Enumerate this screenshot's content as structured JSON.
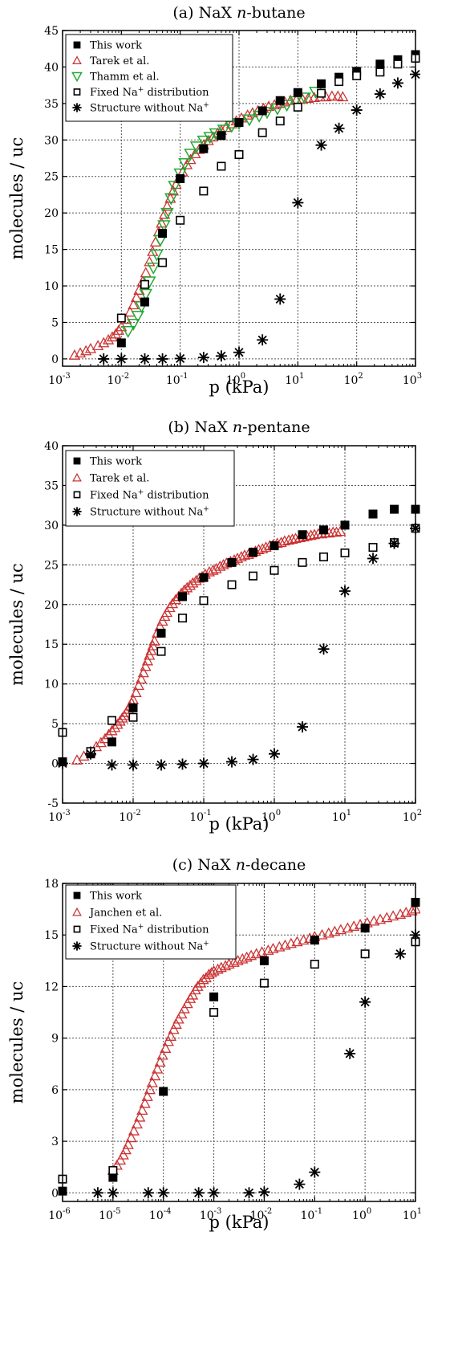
{
  "chart_data": [
    {
      "type": "scatter",
      "title": "(a)  NaX",
      "title_italic": "n",
      "title_rest": "-butane",
      "xlabel": "p (kPa)",
      "ylabel": "molecules / uc",
      "xscale": "log",
      "xlim": [
        0.001,
        1000
      ],
      "ylim": [
        -1,
        45
      ],
      "yticks": [
        0,
        5,
        10,
        15,
        20,
        25,
        30,
        35,
        40,
        45
      ],
      "xtick_exponents": [
        -3,
        -2,
        -1,
        0,
        1,
        2,
        3
      ],
      "xtick_base": "10",
      "grid": true,
      "legend_position": "top-left",
      "series": [
        {
          "name": "This work",
          "marker": "filled-square",
          "color": "#000000",
          "x": [
            0.01,
            0.025,
            0.05,
            0.1,
            0.25,
            0.5,
            1,
            2.5,
            5,
            10,
            25,
            50,
            100,
            250,
            500,
            1000
          ],
          "y": [
            2.2,
            7.8,
            17.2,
            24.7,
            28.8,
            30.6,
            32.4,
            34.0,
            35.4,
            36.5,
            37.7,
            38.6,
            39.4,
            40.4,
            41.0,
            41.7
          ]
        },
        {
          "name": "Tarek et al.",
          "marker": "open-triangle-up",
          "color": "#cc3333",
          "x": [
            0.0016,
            0.002,
            0.0025,
            0.003,
            0.004,
            0.005,
            0.006,
            0.007,
            0.008,
            0.009,
            0.01,
            0.012,
            0.014,
            0.016,
            0.018,
            0.02,
            0.023,
            0.026,
            0.03,
            0.034,
            0.038,
            0.043,
            0.048,
            0.054,
            0.06,
            0.068,
            0.076,
            0.085,
            0.095,
            0.11,
            0.13,
            0.15,
            0.18,
            0.21,
            0.25,
            0.3,
            0.36,
            0.43,
            0.5,
            0.6,
            0.75,
            0.9,
            1.1,
            1.4,
            1.7,
            2.1,
            2.6,
            3.2,
            4,
            5,
            6,
            7.5,
            9.5,
            12,
            15,
            19,
            24,
            30,
            38,
            48,
            58
          ],
          "y": [
            0.5,
            0.8,
            1.1,
            1.4,
            1.8,
            2.2,
            2.6,
            3.0,
            3.4,
            3.9,
            4.4,
            5.4,
            6.4,
            7.4,
            8.4,
            9.4,
            10.6,
            11.8,
            13.3,
            14.7,
            16.0,
            17.4,
            18.6,
            19.8,
            20.9,
            22.0,
            23.0,
            23.9,
            24.7,
            25.6,
            26.6,
            27.3,
            28.1,
            28.7,
            29.3,
            29.9,
            30.4,
            30.9,
            31.3,
            31.7,
            32.2,
            32.6,
            33.0,
            33.4,
            33.7,
            34.0,
            34.3,
            34.6,
            34.8,
            35.0,
            35.2,
            35.4,
            35.5,
            35.6,
            35.7,
            35.8,
            35.9,
            35.9,
            36.0,
            36.0,
            35.9
          ]
        },
        {
          "name": "Thamm et al.",
          "marker": "open-triangle-down",
          "color": "#22aa33",
          "x": [
            0.013,
            0.016,
            0.019,
            0.022,
            0.026,
            0.03,
            0.035,
            0.04,
            0.046,
            0.053,
            0.06,
            0.07,
            0.08,
            0.1,
            0.12,
            0.15,
            0.19,
            0.25,
            0.32,
            0.4,
            0.55,
            0.75,
            1,
            1.5,
            2.2,
            3,
            4.5,
            6.5,
            9,
            13,
            20
          ],
          "y": [
            3.8,
            4.8,
            5.9,
            7.2,
            8.9,
            10.6,
            12.5,
            14.3,
            16.3,
            18.3,
            20.0,
            22.0,
            23.7,
            25.4,
            26.8,
            28.1,
            29.1,
            29.9,
            30.4,
            30.9,
            31.4,
            31.9,
            32.3,
            32.8,
            33.3,
            33.8,
            34.3,
            34.8,
            35.3,
            35.8,
            36.6
          ]
        },
        {
          "name": "Fixed Na+ distribution",
          "marker": "open-square",
          "color": "#000000",
          "x": [
            0.01,
            0.025,
            0.05,
            0.1,
            0.25,
            0.5,
            1,
            2.5,
            5,
            10,
            25,
            50,
            100,
            250,
            500,
            1000
          ],
          "y": [
            5.6,
            10.2,
            13.2,
            19.0,
            23.0,
            26.4,
            28.0,
            31.0,
            32.6,
            34.5,
            36.4,
            38.0,
            38.8,
            39.3,
            40.4,
            41.2
          ]
        },
        {
          "name": "Structure without Na+",
          "marker": "asterisk",
          "color": "#000000",
          "x": [
            0.005,
            0.01,
            0.025,
            0.05,
            0.1,
            0.25,
            0.5,
            1,
            2.5,
            5,
            10,
            25,
            50,
            100,
            250,
            500,
            1000
          ],
          "y": [
            0.0,
            0.0,
            0.0,
            0.0,
            0.05,
            0.2,
            0.4,
            0.9,
            2.6,
            8.2,
            21.4,
            29.3,
            31.6,
            34.1,
            36.3,
            37.8,
            39.0
          ]
        }
      ]
    },
    {
      "type": "scatter",
      "title": "(b) NaX",
      "title_italic": "n",
      "title_rest": "-pentane",
      "xlabel": "p (kPa)",
      "ylabel": "molecules / uc",
      "xscale": "log",
      "xlim": [
        0.001,
        100
      ],
      "ylim": [
        -5,
        40
      ],
      "yticks": [
        -5,
        0,
        5,
        10,
        15,
        20,
        25,
        30,
        35,
        40
      ],
      "xtick_exponents": [
        -3,
        -2,
        -1,
        0,
        1,
        2
      ],
      "xtick_base": "10",
      "grid": true,
      "legend_position": "top-left",
      "series": [
        {
          "name": "This work",
          "marker": "filled-square",
          "color": "#000000",
          "x": [
            0.001,
            0.0025,
            0.005,
            0.01,
            0.025,
            0.05,
            0.1,
            0.25,
            0.5,
            1,
            2.5,
            5,
            10,
            25,
            50,
            100
          ],
          "y": [
            0.2,
            1.2,
            2.7,
            7.0,
            16.4,
            21.0,
            23.4,
            25.3,
            26.6,
            27.4,
            28.8,
            29.4,
            30.0,
            31.4,
            32.0,
            32.0
          ]
        },
        {
          "name": "Tarek et al.",
          "marker": "open-triangle-up",
          "color": "#cc3333",
          "x": [
            0.0016,
            0.002,
            0.0025,
            0.003,
            0.0035,
            0.004,
            0.0045,
            0.005,
            0.0055,
            0.006,
            0.0065,
            0.007,
            0.0075,
            0.008,
            0.0085,
            0.009,
            0.0095,
            0.01,
            0.011,
            0.012,
            0.013,
            0.014,
            0.015,
            0.016,
            0.017,
            0.018,
            0.019,
            0.02,
            0.022,
            0.024,
            0.026,
            0.028,
            0.03,
            0.033,
            0.036,
            0.04,
            0.044,
            0.048,
            0.053,
            0.058,
            0.064,
            0.07,
            0.078,
            0.086,
            0.095,
            0.105,
            0.12,
            0.135,
            0.15,
            0.17,
            0.19,
            0.21,
            0.24,
            0.27,
            0.3,
            0.34,
            0.38,
            0.43,
            0.48,
            0.54,
            0.6,
            0.68,
            0.76,
            0.86,
            0.96,
            1.1,
            1.25,
            1.4,
            1.6,
            1.8,
            2.0,
            2.3,
            2.6,
            2.9,
            3.3,
            3.7,
            4.2,
            4.7,
            5.3,
            6.0,
            6.8,
            7.6,
            8.6
          ],
          "y": [
            0.4,
            0.9,
            1.5,
            2.1,
            2.6,
            3.1,
            3.6,
            4.1,
            4.5,
            4.9,
            5.3,
            5.7,
            6.0,
            6.4,
            6.8,
            7.2,
            7.6,
            8.0,
            8.9,
            9.8,
            10.6,
            11.4,
            12.2,
            12.9,
            13.6,
            14.2,
            14.8,
            15.4,
            16.4,
            17.2,
            17.9,
            18.5,
            19.0,
            19.6,
            20.1,
            20.6,
            21.0,
            21.4,
            21.8,
            22.1,
            22.4,
            22.7,
            23.0,
            23.3,
            23.5,
            23.8,
            24.1,
            24.3,
            24.5,
            24.8,
            25.0,
            25.2,
            25.4,
            25.6,
            25.8,
            26.0,
            26.2,
            26.3,
            26.5,
            26.7,
            26.9,
            27.0,
            27.2,
            27.4,
            27.5,
            27.7,
            27.8,
            28.0,
            28.1,
            28.2,
            28.3,
            28.4,
            28.5,
            28.6,
            28.7,
            28.8,
            28.9,
            28.9,
            29.0,
            29.0,
            29.1,
            29.1,
            29.2
          ]
        },
        {
          "name": "Fixed Na+ distribution",
          "marker": "open-square",
          "color": "#000000",
          "x": [
            0.001,
            0.0025,
            0.005,
            0.01,
            0.025,
            0.05,
            0.1,
            0.25,
            0.5,
            1,
            2.5,
            5,
            10,
            25,
            50,
            100
          ],
          "y": [
            3.9,
            1.5,
            5.4,
            5.8,
            14.1,
            18.3,
            20.5,
            22.5,
            23.6,
            24.3,
            25.3,
            26.0,
            26.5,
            27.2,
            27.8,
            29.6
          ]
        },
        {
          "name": "Structure without Na+",
          "marker": "asterisk",
          "color": "#000000",
          "x": [
            0.001,
            0.0025,
            0.005,
            0.01,
            0.025,
            0.05,
            0.1,
            0.25,
            0.5,
            1,
            2.5,
            5,
            10,
            25,
            50,
            100
          ],
          "y": [
            0.0,
            1.2,
            -0.2,
            -0.2,
            -0.2,
            -0.1,
            0.0,
            0.2,
            0.5,
            1.2,
            4.6,
            14.4,
            21.7,
            25.8,
            27.7,
            29.6
          ]
        }
      ]
    },
    {
      "type": "scatter",
      "title": "(c) NaX",
      "title_italic": "n",
      "title_rest": "-decane",
      "xlabel": "p (kPa)",
      "ylabel": "molecules / uc",
      "xscale": "log",
      "xlim": [
        1e-06,
        10
      ],
      "ylim": [
        -0.5,
        18
      ],
      "yticks": [
        0,
        3,
        6,
        9,
        12,
        15,
        18
      ],
      "xtick_exponents": [
        -6,
        -5,
        -4,
        -3,
        -2,
        -1,
        0,
        1
      ],
      "xtick_base": "10",
      "grid": true,
      "legend_position": "top-left",
      "series": [
        {
          "name": "This work",
          "marker": "filled-square",
          "color": "#000000",
          "x": [
            1e-06,
            1e-05,
            0.0001,
            0.001,
            0.01,
            0.1,
            1,
            10
          ],
          "y": [
            0.1,
            0.9,
            5.9,
            11.4,
            13.5,
            14.7,
            15.4,
            16.9
          ]
        },
        {
          "name": "Janchen et al.",
          "marker": "open-triangle-up",
          "color": "#cc3333",
          "x": [
            1e-05,
            1.2e-05,
            1.4e-05,
            1.6e-05,
            1.8e-05,
            2e-05,
            2.3e-05,
            2.6e-05,
            3e-05,
            3.4e-05,
            3.8e-05,
            4.3e-05,
            4.8e-05,
            5.4e-05,
            6e-05,
            6.8e-05,
            7.6e-05,
            8.6e-05,
            9.6e-05,
            0.00011,
            0.000125,
            0.00014,
            0.00016,
            0.00018,
            0.0002,
            0.00023,
            0.00026,
            0.0003,
            0.00034,
            0.00038,
            0.00043,
            0.00048,
            0.00055,
            0.00062,
            0.0007,
            0.0008,
            0.0009,
            0.001,
            0.0012,
            0.0014,
            0.0017,
            0.002,
            0.0025,
            0.003,
            0.0037,
            0.0045,
            0.0055,
            0.007,
            0.009,
            0.012,
            0.015,
            0.02,
            0.026,
            0.034,
            0.045,
            0.06,
            0.08,
            0.1,
            0.14,
            0.19,
            0.25,
            0.33,
            0.45,
            0.6,
            0.8,
            1.1,
            1.5,
            2,
            2.7,
            3.6,
            5,
            6.5,
            8.5,
            10
          ],
          "y": [
            1.3,
            1.6,
            1.9,
            2.2,
            2.5,
            2.8,
            3.2,
            3.6,
            4.0,
            4.4,
            4.8,
            5.2,
            5.6,
            6.0,
            6.4,
            6.8,
            7.2,
            7.6,
            8.0,
            8.4,
            8.8,
            9.1,
            9.5,
            9.8,
            10.1,
            10.4,
            10.7,
            11.0,
            11.3,
            11.5,
            11.8,
            12.0,
            12.2,
            12.4,
            12.5,
            12.7,
            12.8,
            12.9,
            13.0,
            13.1,
            13.2,
            13.3,
            13.4,
            13.5,
            13.6,
            13.7,
            13.8,
            13.9,
            14.0,
            14.1,
            14.2,
            14.3,
            14.4,
            14.5,
            14.6,
            14.7,
            14.8,
            14.9,
            15.0,
            15.1,
            15.2,
            15.3,
            15.4,
            15.5,
            15.6,
            15.7,
            15.8,
            15.9,
            16.0,
            16.1,
            16.2,
            16.3,
            16.4,
            16.5
          ]
        },
        {
          "name": "Fixed Na+ distribution",
          "marker": "open-square",
          "color": "#000000",
          "x": [
            1e-06,
            1e-05,
            0.001,
            0.01,
            0.1,
            1,
            10
          ],
          "y": [
            0.8,
            1.3,
            10.5,
            12.2,
            13.3,
            13.9,
            14.6
          ]
        },
        {
          "name": "Structure without Na+",
          "marker": "asterisk",
          "color": "#000000",
          "x": [
            5e-06,
            1e-05,
            5e-05,
            0.0001,
            0.0005,
            0.001,
            0.005,
            0.01,
            0.05,
            0.1,
            0.5,
            1,
            5,
            10
          ],
          "y": [
            0.0,
            0.0,
            0.0,
            0.0,
            0.0,
            0.0,
            0.0,
            0.05,
            0.5,
            1.2,
            8.1,
            11.1,
            13.9,
            15.0
          ]
        }
      ]
    }
  ]
}
